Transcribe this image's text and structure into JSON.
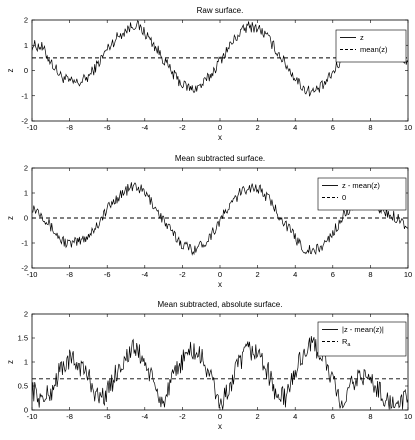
{
  "chart_data": [
    {
      "type": "line",
      "title": "Raw surface.",
      "xlabel": "x",
      "ylabel": "z",
      "xlim": [
        -10,
        10
      ],
      "ylim": [
        -2,
        2
      ],
      "xticks": [
        -10,
        -8,
        -6,
        -4,
        -2,
        0,
        2,
        4,
        6,
        8,
        10
      ],
      "yticks": [
        -2,
        -1,
        0,
        1,
        2
      ],
      "legend_position": "top-right",
      "series": [
        {
          "name": "z",
          "style": "solid",
          "color": "#000000",
          "x": [
            -10,
            -9.5,
            -9,
            -8.5,
            -8,
            -7.5,
            -7,
            -6.5,
            -6,
            -5.5,
            -5,
            -4.5,
            -4,
            -3.5,
            -3,
            -2.5,
            -2,
            -1.5,
            -1,
            -0.5,
            0,
            0.5,
            1,
            1.5,
            2,
            2.5,
            3,
            3.5,
            4,
            4.5,
            5,
            5.5,
            6,
            6.5,
            7,
            7.5,
            8,
            8.5,
            9,
            9.5,
            10
          ],
          "y": [
            1.0,
            0.95,
            0.35,
            -0.2,
            -0.45,
            -0.5,
            -0.25,
            0.25,
            0.85,
            1.3,
            1.6,
            1.85,
            1.5,
            1.0,
            0.45,
            -0.15,
            -0.55,
            -0.75,
            -0.6,
            -0.2,
            0.4,
            0.95,
            1.45,
            1.75,
            1.7,
            1.35,
            0.8,
            0.25,
            -0.3,
            -0.75,
            -0.85,
            -0.6,
            -0.1,
            0.5,
            1.0,
            1.3,
            1.15,
            0.95,
            0.7,
            0.6,
            0.35
          ]
        },
        {
          "name": "mean(z)",
          "style": "dashed",
          "color": "#000000",
          "x": [
            -10,
            10
          ],
          "y": [
            0.5,
            0.5
          ]
        }
      ]
    },
    {
      "type": "line",
      "title": "Mean subtracted surface.",
      "xlabel": "x",
      "ylabel": "z",
      "xlim": [
        -10,
        10
      ],
      "ylim": [
        -2,
        2
      ],
      "xticks": [
        -10,
        -8,
        -6,
        -4,
        -2,
        0,
        2,
        4,
        6,
        8,
        10
      ],
      "yticks": [
        -2,
        -1,
        0,
        1,
        2
      ],
      "legend_position": "top-right",
      "series": [
        {
          "name": "z - mean(z)",
          "style": "solid",
          "color": "#000000",
          "x": [
            -10,
            -9.5,
            -9,
            -8.5,
            -8,
            -7.5,
            -7,
            -6.5,
            -6,
            -5.5,
            -5,
            -4.5,
            -4,
            -3.5,
            -3,
            -2.5,
            -2,
            -1.5,
            -1,
            -0.5,
            0,
            0.5,
            1,
            1.5,
            2,
            2.5,
            3,
            3.5,
            4,
            4.5,
            5,
            5.5,
            6,
            6.5,
            7,
            7.5,
            8,
            8.5,
            9,
            9.5,
            10
          ],
          "y": [
            0.45,
            0.2,
            -0.35,
            -0.85,
            -1.05,
            -0.95,
            -0.7,
            -0.25,
            0.35,
            0.8,
            1.1,
            1.3,
            1.0,
            0.5,
            -0.1,
            -0.65,
            -1.05,
            -1.25,
            -1.1,
            -0.7,
            -0.1,
            0.45,
            0.95,
            1.25,
            1.2,
            0.85,
            0.3,
            -0.25,
            -0.8,
            -1.25,
            -1.35,
            -1.1,
            -0.6,
            0.0,
            0.5,
            0.75,
            0.6,
            0.4,
            0.15,
            0.0,
            -0.35
          ]
        },
        {
          "name": "0",
          "style": "dashed",
          "color": "#000000",
          "x": [
            -10,
            10
          ],
          "y": [
            0,
            0
          ]
        }
      ]
    },
    {
      "type": "line",
      "title": "Mean subtracted, absolute surface.",
      "xlabel": "x",
      "ylabel": "z",
      "xlim": [
        -10,
        10
      ],
      "ylim": [
        0,
        2
      ],
      "xticks": [
        -10,
        -8,
        -6,
        -4,
        -2,
        0,
        2,
        4,
        6,
        8,
        10
      ],
      "yticks": [
        0,
        0.5,
        1,
        1.5,
        2
      ],
      "legend_position": "top-right",
      "series": [
        {
          "name": "|z - mean(z)|",
          "style": "solid",
          "color": "#000000",
          "x": [
            -10,
            -9.5,
            -9,
            -8.5,
            -8,
            -7.5,
            -7,
            -6.5,
            -6,
            -5.5,
            -5,
            -4.5,
            -4,
            -3.5,
            -3,
            -2.5,
            -2,
            -1.5,
            -1,
            -0.5,
            0,
            0.5,
            1,
            1.5,
            2,
            2.5,
            3,
            3.5,
            4,
            4.5,
            5,
            5.5,
            6,
            6.5,
            7,
            7.5,
            8,
            8.5,
            9,
            9.5,
            10
          ],
          "y": [
            0.45,
            0.2,
            0.35,
            0.85,
            1.05,
            0.95,
            0.7,
            0.25,
            0.35,
            0.8,
            1.1,
            1.3,
            1.0,
            0.5,
            0.1,
            0.65,
            1.05,
            1.25,
            1.1,
            0.7,
            0.1,
            0.45,
            0.95,
            1.25,
            1.2,
            0.85,
            0.3,
            0.25,
            0.8,
            1.25,
            1.35,
            1.1,
            0.6,
            0.0,
            0.5,
            0.75,
            0.6,
            0.4,
            0.15,
            0.0,
            0.35
          ]
        },
        {
          "name": "R_a",
          "style": "dashed",
          "color": "#000000",
          "x": [
            -10,
            10
          ],
          "y": [
            0.65,
            0.65
          ]
        }
      ]
    }
  ]
}
